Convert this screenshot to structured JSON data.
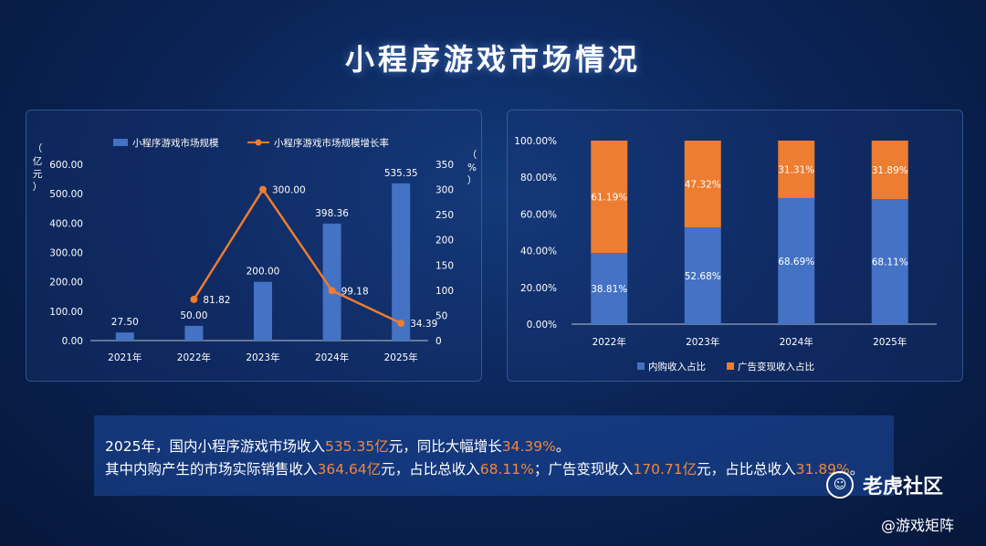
{
  "title": "小程序游戏市场情况",
  "left_chart_labels": {
    "y_left_unit": [
      "（",
      "亿",
      "元",
      "）"
    ],
    "y_right_unit": [
      "（",
      "%",
      "）"
    ]
  },
  "right_chart_labels": {},
  "chart_data": [
    {
      "type": "bar",
      "categories": [
        "2021年",
        "2022年",
        "2023年",
        "2024年",
        "2025年"
      ],
      "series": [
        {
          "name": "小程序游戏市场规模",
          "type": "bar",
          "values": [
            27.5,
            50.0,
            200.0,
            398.36,
            535.35
          ],
          "labels": [
            "27.50",
            "50.00",
            "200.00",
            "398.36",
            "535.35"
          ],
          "axis": "left"
        },
        {
          "name": "小程序游戏市场规模增长率",
          "type": "line",
          "values": [
            null,
            81.82,
            300.0,
            99.18,
            34.39
          ],
          "labels": [
            "",
            "81.82",
            "300.00",
            "99.18",
            "34.39"
          ],
          "axis": "right"
        }
      ],
      "ylim": [
        0,
        600
      ],
      "y_ticks": [
        "0.00",
        "100.00",
        "200.00",
        "300.00",
        "400.00",
        "500.00",
        "600.00"
      ],
      "y2lim": [
        0,
        350
      ],
      "y2_ticks": [
        "0",
        "50",
        "100",
        "150",
        "200",
        "250",
        "300",
        "350"
      ],
      "ylabel": "亿元",
      "y2label": "%",
      "legend": "top",
      "colors": {
        "bar": "#4472c4",
        "line": "#ed7d31"
      }
    },
    {
      "type": "bar",
      "stacked": true,
      "categories": [
        "2022年",
        "2023年",
        "2024年",
        "2025年"
      ],
      "series": [
        {
          "name": "内购收入占比",
          "values": [
            38.81,
            52.68,
            68.69,
            68.11
          ],
          "labels": [
            "38.81%",
            "52.68%",
            "68.69%",
            "68.11%"
          ]
        },
        {
          "name": "广告变现收入占比",
          "values": [
            61.19,
            47.32,
            31.31,
            31.89
          ],
          "labels": [
            "61.19%",
            "47.32%",
            "31.31%",
            "31.89%"
          ]
        }
      ],
      "ylim": [
        0,
        100
      ],
      "y_ticks": [
        "0.00%",
        "20.00%",
        "40.00%",
        "60.00%",
        "80.00%",
        "100.00%"
      ],
      "legend": "bottom",
      "colors": {
        "内购收入占比": "#4472c4",
        "广告变现收入占比": "#ed7d31"
      }
    }
  ],
  "summary": {
    "l1_a": "2025年，国内小程序游戏市场收入",
    "l1_b": "535.35亿",
    "l1_c": "元，同比大幅增长",
    "l1_d": "34.39%",
    "l1_e": "。",
    "l2_a": "其中内购产生的市场实际销售收入",
    "l2_b": "364.64亿",
    "l2_c": "元，占比总收入",
    "l2_d": "68.11%",
    "l2_e": "；广告变现收入",
    "l2_f": "170.71亿",
    "l2_g": "元，占比总收入",
    "l2_h": "31.89%",
    "l2_i": "。"
  },
  "watermark": {
    "brand": "老虎社区",
    "logo_glyph": "☺",
    "handle": "@游戏矩阵"
  }
}
